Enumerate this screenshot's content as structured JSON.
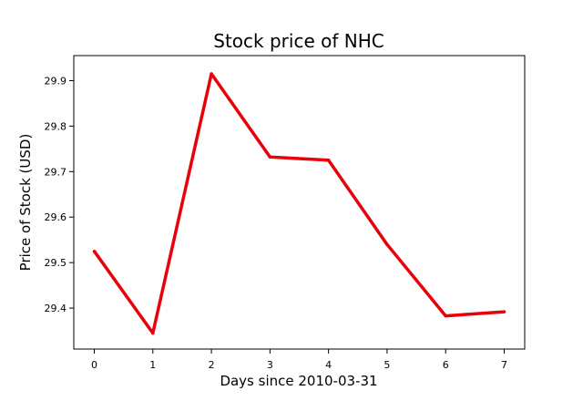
{
  "chart_data": {
    "type": "line",
    "title": "Stock price of NHC",
    "xlabel": "Days since 2010-03-31",
    "ylabel": "Price of Stock (USD)",
    "x": [
      0,
      1,
      2,
      3,
      4,
      5,
      6,
      7
    ],
    "series": [
      {
        "values": [
          29.525,
          29.345,
          29.915,
          29.732,
          29.725,
          29.54,
          29.383,
          29.392
        ],
        "color": "#e8000b"
      }
    ],
    "xlim": [
      -0.35,
      7.35
    ],
    "ylim": [
      29.31,
      29.955
    ],
    "xticks": [
      "0",
      "1",
      "2",
      "3",
      "4",
      "5",
      "6",
      "7"
    ],
    "yticks": [
      "29.4",
      "29.5",
      "29.6",
      "29.7",
      "29.8",
      "29.9"
    ],
    "grid": false,
    "legend": "none"
  }
}
